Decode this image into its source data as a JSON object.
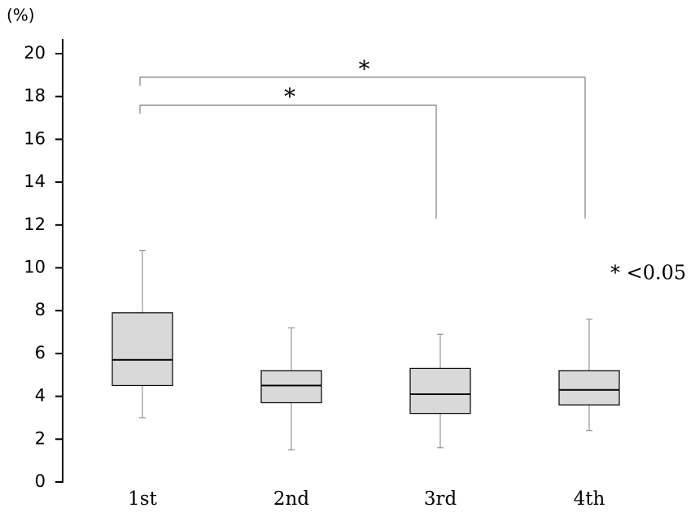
{
  "chart_data": {
    "type": "box",
    "y_label": "(%)",
    "categories": [
      "1st",
      "2nd",
      "3rd",
      "4th"
    ],
    "stats": [
      {
        "min": 3.0,
        "q1": 4.5,
        "median": 5.7,
        "q3": 7.9,
        "max": 10.8
      },
      {
        "min": 1.5,
        "q1": 3.7,
        "median": 4.5,
        "q3": 5.2,
        "max": 7.2
      },
      {
        "min": 1.6,
        "q1": 3.2,
        "median": 4.1,
        "q3": 5.3,
        "max": 6.9
      },
      {
        "min": 2.4,
        "q1": 3.6,
        "median": 4.3,
        "q3": 5.2,
        "max": 7.6
      }
    ],
    "box_color": "#d9d9d9",
    "whisker_color": "#7f7f7f",
    "ylim": [
      0,
      20
    ],
    "yticks": [
      0,
      2,
      4,
      6,
      8,
      10,
      12,
      14,
      16,
      18,
      20
    ],
    "brackets": [
      {
        "from": "1st",
        "to": "3rd",
        "y": 17.6,
        "left_end": 17.2,
        "right_end": 12.3,
        "label": "*"
      },
      {
        "from": "1st",
        "to": "4th",
        "y": 18.9,
        "left_end": 18.5,
        "right_end": 12.3,
        "label": "*"
      }
    ],
    "note": "* <0.05"
  }
}
